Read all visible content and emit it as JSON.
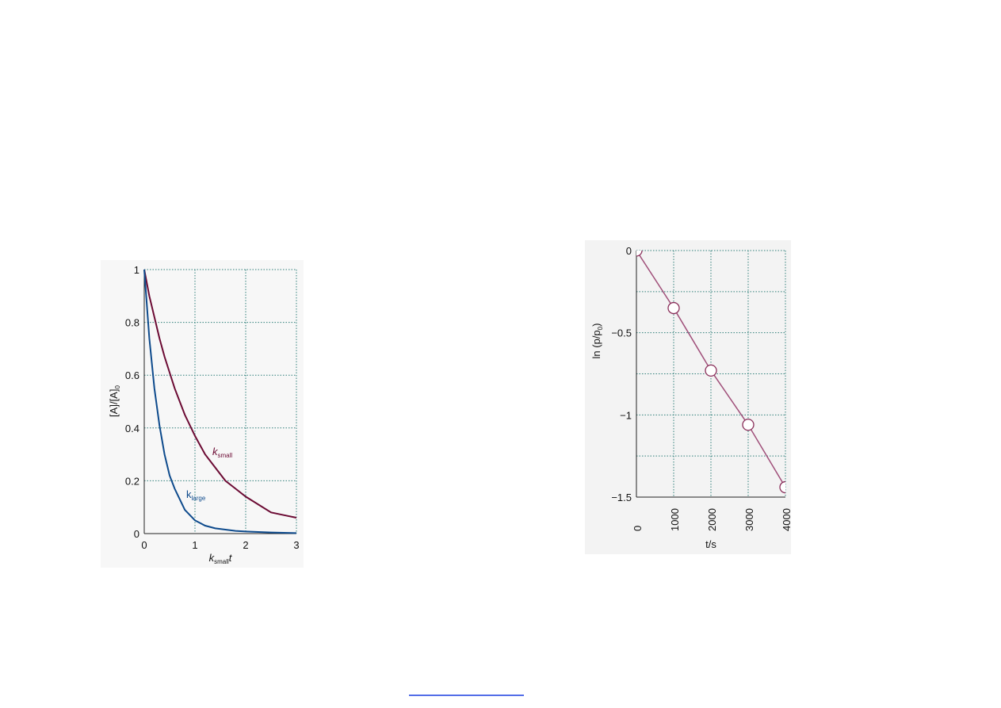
{
  "chart_data": [
    {
      "type": "line",
      "y_label": {
        "main": "[A]/[A]",
        "sub": "0"
      },
      "x_label": {
        "main": "k",
        "sub": "small",
        "tail": "t"
      },
      "x": [
        0,
        0.1,
        0.2,
        0.3,
        0.4,
        0.5,
        0.6,
        0.8,
        1,
        1.2,
        1.4,
        1.6,
        1.8,
        2,
        2.25,
        2.5,
        2.75,
        3
      ],
      "series": [
        {
          "name": {
            "main": "k",
            "sub": "small"
          },
          "color": "#6b0a33",
          "values": [
            1,
            0.9,
            0.82,
            0.74,
            0.67,
            0.61,
            0.55,
            0.45,
            0.37,
            0.3,
            0.25,
            0.2,
            0.17,
            0.14,
            0.11,
            0.08,
            0.07,
            0.06
          ]
        },
        {
          "name": {
            "main": "k",
            "sub": "large"
          },
          "color": "#0d4a8c",
          "values": [
            1,
            0.74,
            0.55,
            0.41,
            0.3,
            0.22,
            0.17,
            0.09,
            0.05,
            0.03,
            0.02,
            0.015,
            0.01,
            0.008,
            0.006,
            0.004,
            0.003,
            0.002
          ]
        }
      ],
      "xlim": [
        0,
        3
      ],
      "ylim": [
        0,
        1
      ],
      "xticks": [
        0,
        1,
        2,
        3
      ],
      "yticks": [
        0,
        0.2,
        0.4,
        0.6,
        0.8,
        1
      ],
      "grid": true
    },
    {
      "type": "scatter",
      "y_label": {
        "main": "ln (p/p",
        "sub": "0",
        "tail": ")"
      },
      "x_label": "t/s",
      "series": [
        {
          "color": "#a0507a",
          "x": [
            0,
            1000,
            2000,
            3000,
            4000
          ],
          "values": [
            0,
            -0.35,
            -0.73,
            -1.06,
            -1.44
          ]
        }
      ],
      "xlim": [
        0,
        4000
      ],
      "ylim": [
        -1.5,
        0
      ],
      "xticks": [
        0,
        1000,
        2000,
        3000,
        4000
      ],
      "yticks": [
        0,
        {
          "value": -0.5,
          "label": "−0.5"
        },
        {
          "value": -1,
          "label": "−1"
        },
        {
          "value": -1.5,
          "label": "−1.5"
        }
      ],
      "ygrid": [
        -0.25,
        -0.75,
        -1.25
      ],
      "grid": true
    }
  ]
}
